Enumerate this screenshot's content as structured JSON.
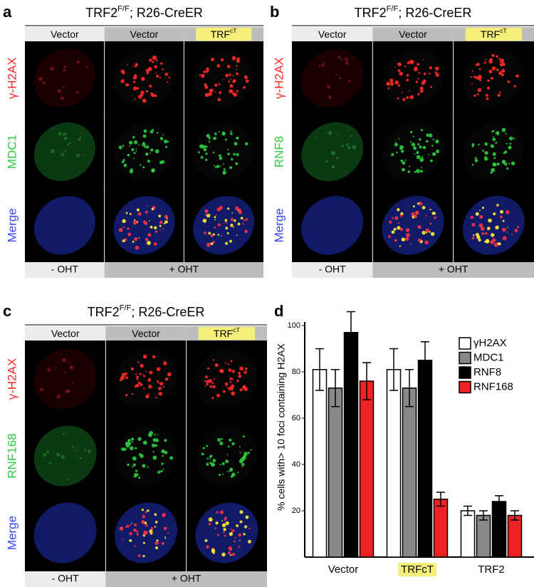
{
  "panels": [
    {
      "letter": "a",
      "title": {
        "main": "TRF2",
        "sup": "F/F",
        "rest": "; R26-CreER"
      },
      "columns": [
        {
          "main": "Vector"
        },
        {
          "main": "Vector"
        },
        {
          "main": "TRF",
          "sup": "cT"
        }
      ],
      "rows": [
        "γ-H2AX",
        "MDC1",
        "Merge"
      ],
      "footer": [
        "- OHT",
        "+ OHT"
      ]
    },
    {
      "letter": "b",
      "title": {
        "main": "TRF2",
        "sup": "F/F",
        "rest": "; R26-CreER"
      },
      "columns": [
        {
          "main": "Vector"
        },
        {
          "main": "Vector"
        },
        {
          "main": "TRF",
          "sup": "cT"
        }
      ],
      "rows": [
        "γ-H2AX",
        "RNF8",
        "Merge"
      ],
      "footer": [
        "- OHT",
        "+ OHT"
      ]
    },
    {
      "letter": "c",
      "title": {
        "main": "TRF2",
        "sup": "F/F",
        "rest": "; R26-CreER"
      },
      "columns": [
        {
          "main": "Vector"
        },
        {
          "main": "Vector"
        },
        {
          "main": "TRF",
          "sup": "cT"
        }
      ],
      "rows": [
        "γ-H2AX",
        "RNF168",
        "Merge"
      ],
      "footer": [
        "- OHT",
        "+ OHT"
      ]
    }
  ],
  "chart_data": {
    "type": "bar",
    "letter": "d",
    "y_label": "% cells with> 10 foci containing H2AX",
    "categories": [
      "Vector",
      "TRFcT",
      "TRF2"
    ],
    "series": [
      {
        "name": "γH2AX",
        "color": "#ffffff",
        "values": [
          81,
          81,
          20
        ],
        "errors": [
          9,
          9,
          2
        ]
      },
      {
        "name": "MDC1",
        "color": "#888888",
        "values": [
          73,
          73,
          18
        ],
        "errors": [
          8,
          8,
          2
        ]
      },
      {
        "name": "RNF8",
        "color": "#000000",
        "values": [
          97,
          85,
          24
        ],
        "errors": [
          9,
          8,
          2.5
        ]
      },
      {
        "name": "RNF168",
        "color": "#ee2222",
        "values": [
          76,
          25,
          18
        ],
        "errors": [
          8,
          3,
          2
        ]
      }
    ],
    "ylim": [
      0,
      100
    ],
    "yticks": [
      20,
      40,
      60,
      80,
      100
    ]
  }
}
